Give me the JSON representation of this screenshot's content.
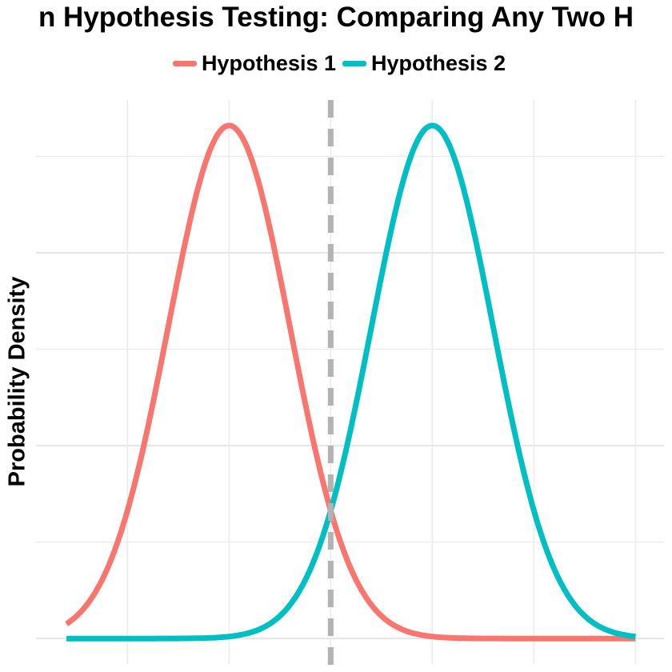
{
  "chart_data": {
    "type": "line",
    "title": "n Hypothesis Testing: Comparing Any Two H",
    "xlabel": "",
    "ylabel": "Probability Density",
    "legend_position": "top",
    "grid": true,
    "xlim": [
      -2.9,
      3.28
    ],
    "ylim": [
      -0.033,
      0.698
    ],
    "x_gridlines": [
      -2,
      -1,
      0,
      1,
      2,
      3
    ],
    "y_gridlines_major": [
      0,
      0.25,
      0.5
    ],
    "y_gridlines_minor": [
      0.125,
      0.375,
      0.625
    ],
    "x_range_curves": [
      -2.6,
      3.0
    ],
    "series": [
      {
        "name": "Hypothesis 1",
        "distribution": "normal",
        "mean": -1,
        "sd": 0.6,
        "color": "#F8766D"
      },
      {
        "name": "Hypothesis 2",
        "distribution": "normal",
        "mean": 1,
        "sd": 0.6,
        "color": "#00BFC4"
      }
    ],
    "threshold_line": {
      "x": 0,
      "style": "dashed",
      "color": "#B3B3B3"
    }
  }
}
